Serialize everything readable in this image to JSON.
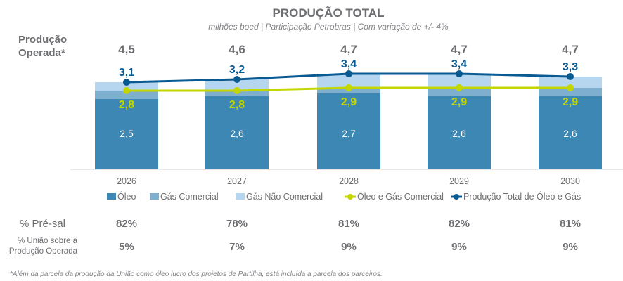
{
  "chart_data": {
    "type": "bar",
    "title": "PRODUÇÃO TOTAL",
    "subtitle": "milhões boed | Participação Petrobras | Com variação de +/- 4%",
    "categories": [
      "2026",
      "2027",
      "2028",
      "2029",
      "2030"
    ],
    "stacked": true,
    "ylim": [
      0,
      3.6
    ],
    "grid": false,
    "legend_position": "bottom",
    "series": [
      {
        "name": "Óleo",
        "kind": "bar",
        "color": "#3d87b5",
        "values": [
          2.5,
          2.6,
          2.7,
          2.6,
          2.6
        ],
        "labels": [
          "2,5",
          "2,6",
          "2,7",
          "2,6",
          "2,6"
        ]
      },
      {
        "name": "Gás Comercial",
        "kind": "bar",
        "color": "#7fafcf",
        "values": [
          0.3,
          0.2,
          0.2,
          0.3,
          0.3
        ]
      },
      {
        "name": "Gás Não Comercial",
        "kind": "bar",
        "color": "#b5d6ee",
        "values": [
          0.3,
          0.4,
          0.5,
          0.5,
          0.4
        ]
      },
      {
        "name": "Óleo e Gás Comercial",
        "kind": "line",
        "color": "#c3d600",
        "values": [
          2.8,
          2.8,
          2.9,
          2.9,
          2.9
        ],
        "labels": [
          "2,8",
          "2,8",
          "2,9",
          "2,9",
          "2,9"
        ]
      },
      {
        "name": "Produção Total de Óleo e Gás",
        "kind": "line",
        "color": "#0a5a92",
        "values": [
          3.1,
          3.2,
          3.4,
          3.4,
          3.3
        ],
        "labels": [
          "3,1",
          "3,2",
          "3,4",
          "3,4",
          "3,3"
        ]
      }
    ],
    "operated": {
      "label_line1": "Produção",
      "label_line2": "Operada*",
      "values": [
        "4,5",
        "4,6",
        "4,7",
        "4,7",
        "4,7"
      ]
    },
    "presal": {
      "label": "% Pré-sal",
      "values": [
        "82%",
        "78%",
        "81%",
        "82%",
        "81%"
      ]
    },
    "uniao": {
      "label_line1": "% União sobre a",
      "label_line2": "Produção Operada",
      "values": [
        "5%",
        "7%",
        "9%",
        "9%",
        "9%"
      ]
    },
    "footnote": "*Além da parcela da produção da União como óleo lucro dos projetos de Partilha, está incluída a parcela dos parceiros."
  }
}
